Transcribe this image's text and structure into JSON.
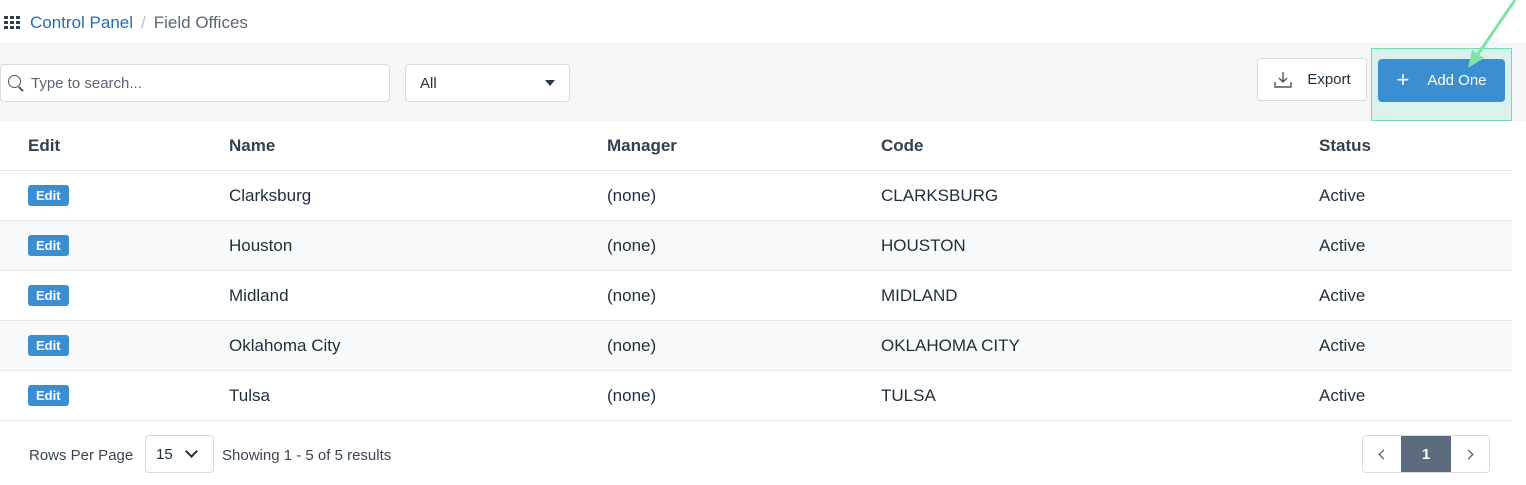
{
  "breadcrumb": {
    "icon": "grid-icon",
    "root": "Control Panel",
    "separator": "/",
    "current": "Field Offices"
  },
  "toolbar": {
    "search_placeholder": "Type to search...",
    "search_value": "",
    "filter_value": "All",
    "export_label": "Export",
    "add_label": "Add One"
  },
  "table": {
    "headers": [
      "Edit",
      "Name",
      "Manager",
      "Code",
      "Status"
    ],
    "edit_label": "Edit",
    "rows": [
      {
        "name": "Clarksburg",
        "manager": "(none)",
        "code": "CLARKSBURG",
        "status": "Active"
      },
      {
        "name": "Houston",
        "manager": "(none)",
        "code": "HOUSTON",
        "status": "Active"
      },
      {
        "name": "Midland",
        "manager": "(none)",
        "code": "MIDLAND",
        "status": "Active"
      },
      {
        "name": "Oklahoma City",
        "manager": "(none)",
        "code": "OKLAHOMA CITY",
        "status": "Active"
      },
      {
        "name": "Tulsa",
        "manager": "(none)",
        "code": "TULSA",
        "status": "Active"
      }
    ]
  },
  "footer": {
    "rows_per_page_label": "Rows Per Page",
    "rows_per_page_value": "15",
    "showing_text": "Showing 1 - 5 of 5 results",
    "current_page": "1"
  },
  "colors": {
    "primary": "#3b8fd0",
    "highlight": "#6fdcb3",
    "active_page": "#5b6b7d"
  }
}
